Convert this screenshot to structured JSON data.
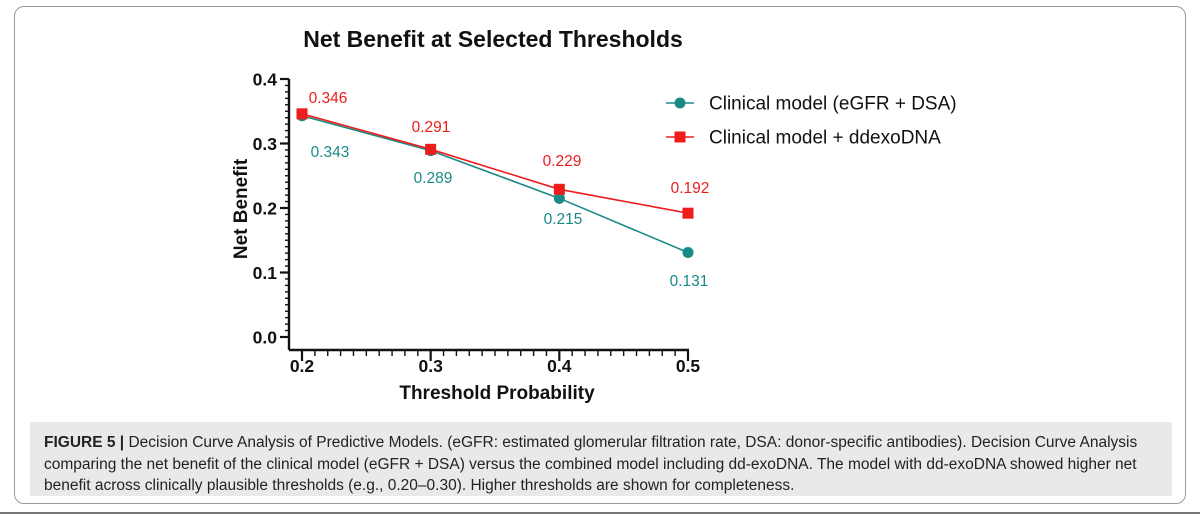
{
  "chart_data": {
    "type": "line",
    "title": "Net Benefit at Selected Thresholds",
    "xlabel": "Threshold Probability",
    "ylabel": "Net Benefit",
    "x": [
      0.2,
      0.3,
      0.4,
      0.5
    ],
    "xlim": [
      0.2,
      0.5
    ],
    "ylim": [
      0.0,
      0.4
    ],
    "x_ticks": [
      "0.2",
      "0.3",
      "0.4",
      "0.5"
    ],
    "y_ticks": [
      "0.0",
      "0.1",
      "0.2",
      "0.3",
      "0.4"
    ],
    "grid": false,
    "legend_position": "top-right",
    "series": [
      {
        "name": "Clinical model (eGFR + DSA)",
        "color": "#1a8a87",
        "marker": "circle",
        "values": [
          0.343,
          0.289,
          0.215,
          0.131
        ],
        "labels": [
          "0.343",
          "0.289",
          "0.215",
          "0.131"
        ]
      },
      {
        "name": "Clinical model + ddexoDNA",
        "color": "#ee1c1c",
        "marker": "square",
        "values": [
          0.346,
          0.291,
          0.229,
          0.192
        ],
        "labels": [
          "0.346",
          "0.291",
          "0.229",
          "0.192"
        ]
      }
    ]
  },
  "caption": {
    "label": "FIGURE 5 |",
    "text": " Decision Curve Analysis of Predictive Models. (eGFR: estimated glomerular filtration rate, DSA: donor-specific antibodies). Decision Curve Analysis comparing the net benefit of the clinical model (eGFR + DSA) versus the combined model including dd-exoDNA. The model with dd-exoDNA showed higher net benefit across clinically plausible thresholds (e.g., 0.20–0.30). Higher thresholds are shown for completeness."
  }
}
